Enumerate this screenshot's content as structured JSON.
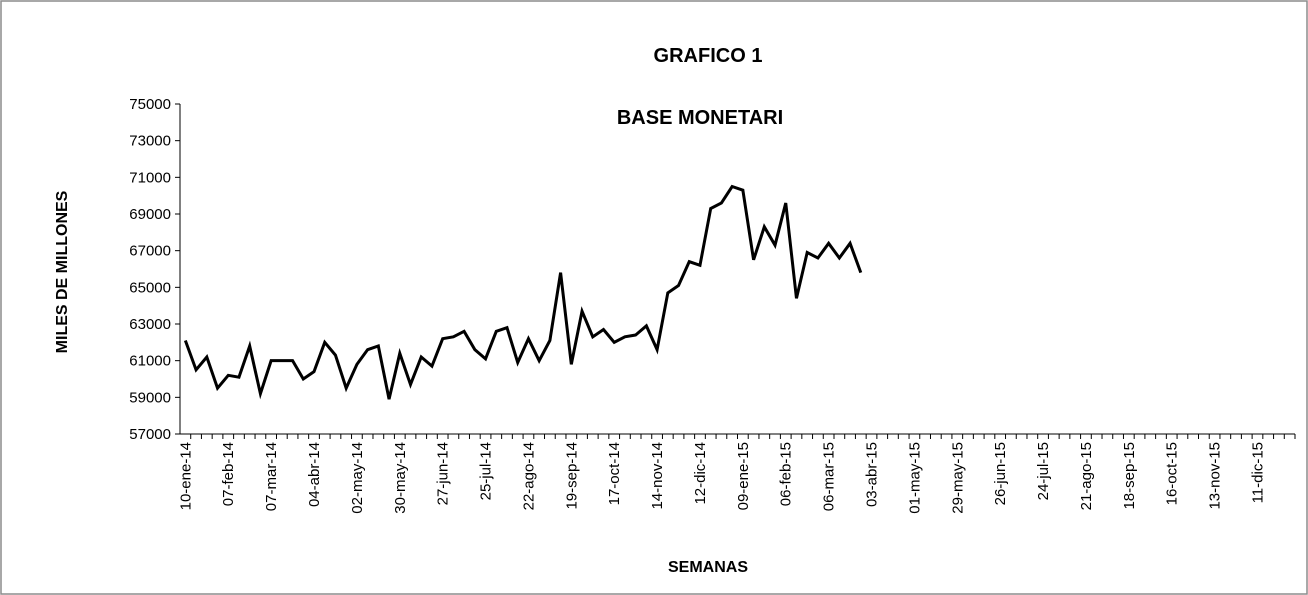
{
  "chart_data": {
    "type": "line",
    "title": "GRAFICO 1",
    "subtitle": "BASE MONETARI",
    "x_label": "SEMANAS",
    "y_label": "MILES DE MILLONES",
    "categories": [
      "10-ene-14",
      null,
      null,
      null,
      "07-feb-14",
      null,
      null,
      null,
      "07-mar-14",
      null,
      null,
      null,
      "04-abr-14",
      null,
      null,
      null,
      "02-may-14",
      null,
      null,
      null,
      "30-may-14",
      null,
      null,
      null,
      "27-jun-14",
      null,
      null,
      null,
      "25-jul-14",
      null,
      null,
      null,
      "22-ago-14",
      null,
      null,
      null,
      "19-sep-14",
      null,
      null,
      null,
      "17-oct-14",
      null,
      null,
      null,
      "14-nov-14",
      null,
      null,
      null,
      "12-dic-14",
      null,
      null,
      null,
      "09-ene-15",
      null,
      null,
      null,
      "06-feb-15",
      null,
      null,
      null,
      "06-mar-15",
      null,
      null,
      null,
      "03-abr-15",
      null,
      null,
      null,
      "01-may-15",
      null,
      null,
      null,
      "29-may-15",
      null,
      null,
      null,
      "26-jun-15",
      null,
      null,
      null,
      "24-jul-15",
      null,
      null,
      null,
      "21-ago-15",
      null,
      null,
      null,
      "18-sep-15",
      null,
      null,
      null,
      "16-oct-15",
      null,
      null,
      null,
      "13-nov-15",
      null,
      null,
      null,
      "11-dic-15",
      null,
      null,
      null
    ],
    "values": [
      62100,
      60500,
      61200,
      59500,
      60200,
      60100,
      61800,
      59200,
      61000,
      61000,
      61000,
      60000,
      60400,
      62000,
      61300,
      59500,
      60800,
      61600,
      61800,
      58900,
      61400,
      59700,
      61200,
      60700,
      62200,
      62300,
      62600,
      61600,
      61100,
      62600,
      62800,
      60900,
      62200,
      61000,
      62100,
      65800,
      60800,
      63700,
      62300,
      62700,
      62000,
      62300,
      62400,
      62900,
      61600,
      64700,
      65100,
      66400,
      66200,
      69300,
      69600,
      70500,
      70300,
      66500,
      68300,
      67300,
      69600,
      64400,
      66900,
      66600,
      67400,
      66600,
      67400,
      65800,
      null,
      null,
      null,
      null,
      null,
      null,
      null,
      null,
      null,
      null,
      null,
      null,
      null,
      null,
      null,
      null,
      null,
      null,
      null,
      null,
      null,
      null,
      null,
      null,
      null,
      null,
      null,
      null,
      null,
      null,
      null,
      null,
      null,
      null,
      null,
      null,
      null,
      null,
      null,
      null
    ],
    "color": "#000000",
    "ylim": [
      57000,
      75000
    ],
    "yticks": [
      57000,
      59000,
      61000,
      63000,
      65000,
      67000,
      69000,
      71000,
      73000,
      75000
    ],
    "grid": false
  }
}
